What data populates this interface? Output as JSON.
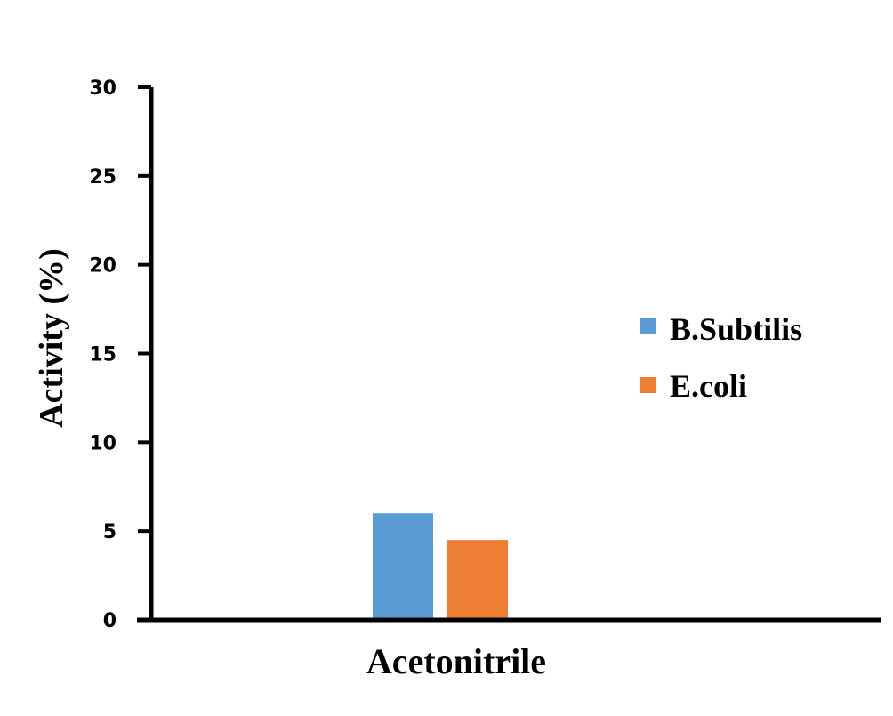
{
  "chart_data": {
    "type": "bar",
    "title": "",
    "xlabel": "",
    "ylabel": "Activity (%)",
    "categories": [
      "Acetonitrile"
    ],
    "ylim": [
      0,
      30
    ],
    "yticks": [
      0,
      5,
      10,
      15,
      20,
      25,
      30
    ],
    "grid": false,
    "legend_position": "right",
    "series": [
      {
        "name": "B.Subtilis",
        "values": [
          6
        ],
        "color": "#5b9bd5"
      },
      {
        "name": "E.coli",
        "values": [
          4.5
        ],
        "color": "#ed7d31"
      }
    ]
  }
}
